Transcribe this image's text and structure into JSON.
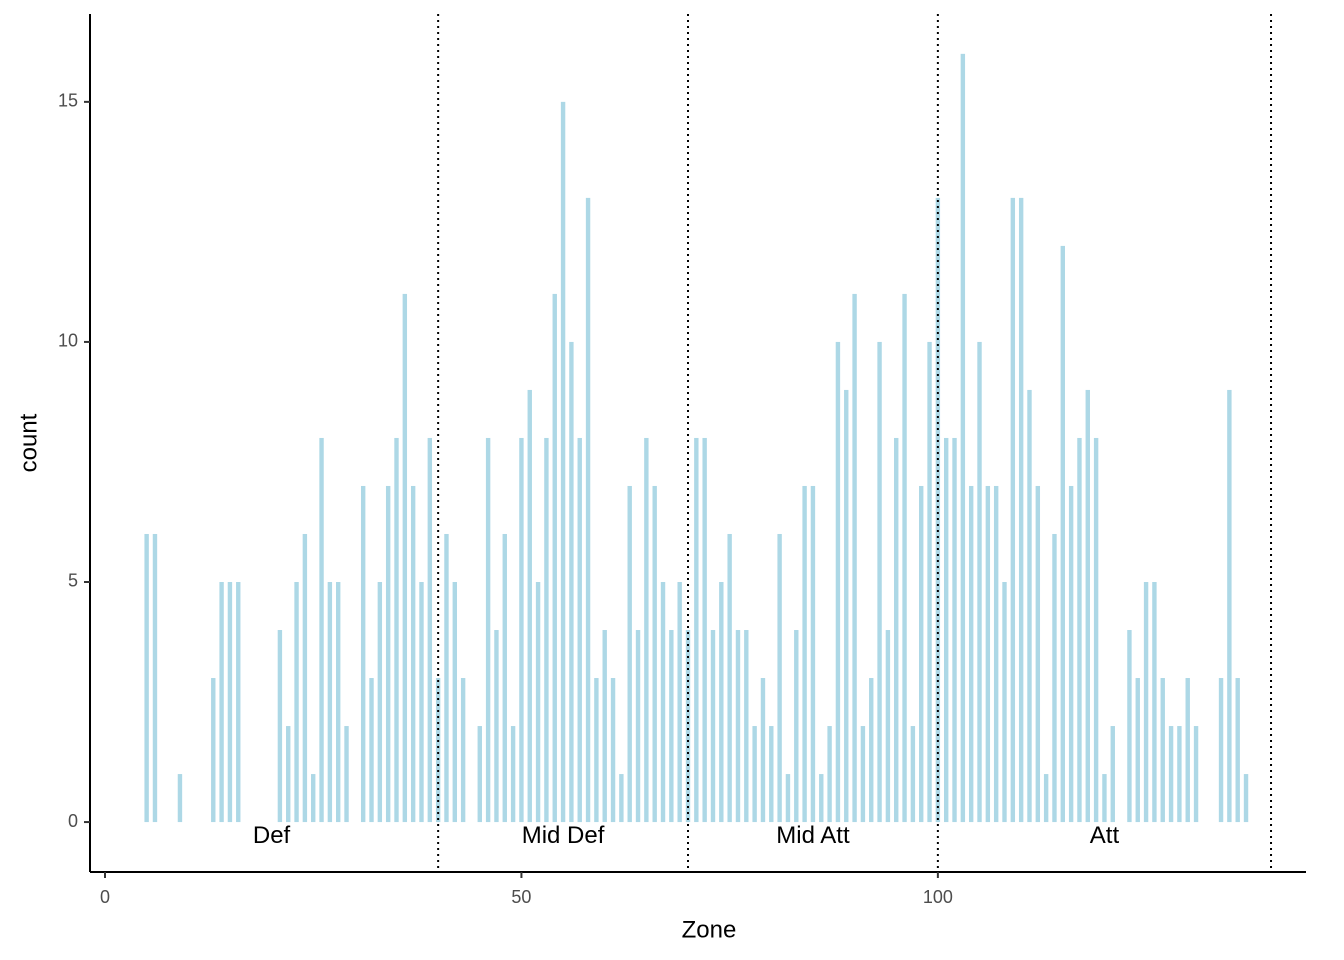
{
  "chart_data": {
    "type": "bar",
    "x_label": "Zone",
    "y_label": "count",
    "x": [
      5,
      6,
      9,
      13,
      14,
      15,
      16,
      21,
      22,
      23,
      24,
      25,
      26,
      27,
      28,
      29,
      31,
      32,
      33,
      34,
      35,
      36,
      37,
      38,
      39,
      40,
      41,
      42,
      43,
      45,
      46,
      47,
      48,
      49,
      50,
      51,
      52,
      53,
      54,
      55,
      56,
      57,
      58,
      59,
      60,
      61,
      62,
      63,
      64,
      65,
      66,
      67,
      68,
      69,
      70,
      71,
      72,
      73,
      74,
      75,
      76,
      77,
      78,
      79,
      80,
      81,
      82,
      83,
      84,
      85,
      86,
      87,
      88,
      89,
      90,
      91,
      92,
      93,
      94,
      95,
      96,
      97,
      98,
      99,
      100,
      101,
      102,
      103,
      104,
      105,
      106,
      107,
      108,
      109,
      110,
      111,
      112,
      113,
      114,
      115,
      116,
      117,
      118,
      119,
      120,
      121,
      123,
      124,
      125,
      126,
      127,
      128,
      129,
      130,
      131,
      134,
      135,
      136,
      137
    ],
    "values": [
      6,
      6,
      1,
      3,
      5,
      5,
      5,
      4,
      2,
      5,
      6,
      1,
      8,
      5,
      5,
      2,
      7,
      3,
      5,
      7,
      8,
      11,
      7,
      5,
      8,
      3,
      6,
      5,
      3,
      2,
      8,
      4,
      6,
      2,
      8,
      9,
      5,
      8,
      11,
      15,
      10,
      8,
      13,
      3,
      4,
      3,
      1,
      7,
      4,
      8,
      7,
      5,
      4,
      5,
      4,
      8,
      8,
      4,
      5,
      6,
      4,
      4,
      2,
      3,
      2,
      6,
      1,
      4,
      7,
      7,
      1,
      2,
      10,
      9,
      11,
      2,
      3,
      10,
      4,
      8,
      11,
      2,
      7,
      10,
      13,
      8,
      8,
      16,
      7,
      10,
      7,
      7,
      5,
      13,
      13,
      9,
      7,
      1,
      6,
      12,
      7,
      8,
      9,
      8,
      1,
      2,
      4,
      3,
      5,
      5,
      3,
      2,
      2,
      3,
      2,
      3,
      9,
      3,
      1
    ],
    "color": "#add8e6",
    "xlim": [
      -1.8,
      144.2
    ],
    "xticks": [
      0,
      50,
      100
    ],
    "ylim": [
      -1.04,
      16.83
    ],
    "yticks": [
      0,
      5,
      10,
      15
    ],
    "vlines": [
      40,
      70,
      100,
      140
    ],
    "annotations": [
      {
        "text": "Def",
        "x": 20,
        "y": -0.3
      },
      {
        "text": "Mid Def",
        "x": 55,
        "y": -0.3
      },
      {
        "text": "Mid Att",
        "x": 85,
        "y": -0.3
      },
      {
        "text": "Att",
        "x": 120,
        "y": -0.3
      }
    ]
  }
}
